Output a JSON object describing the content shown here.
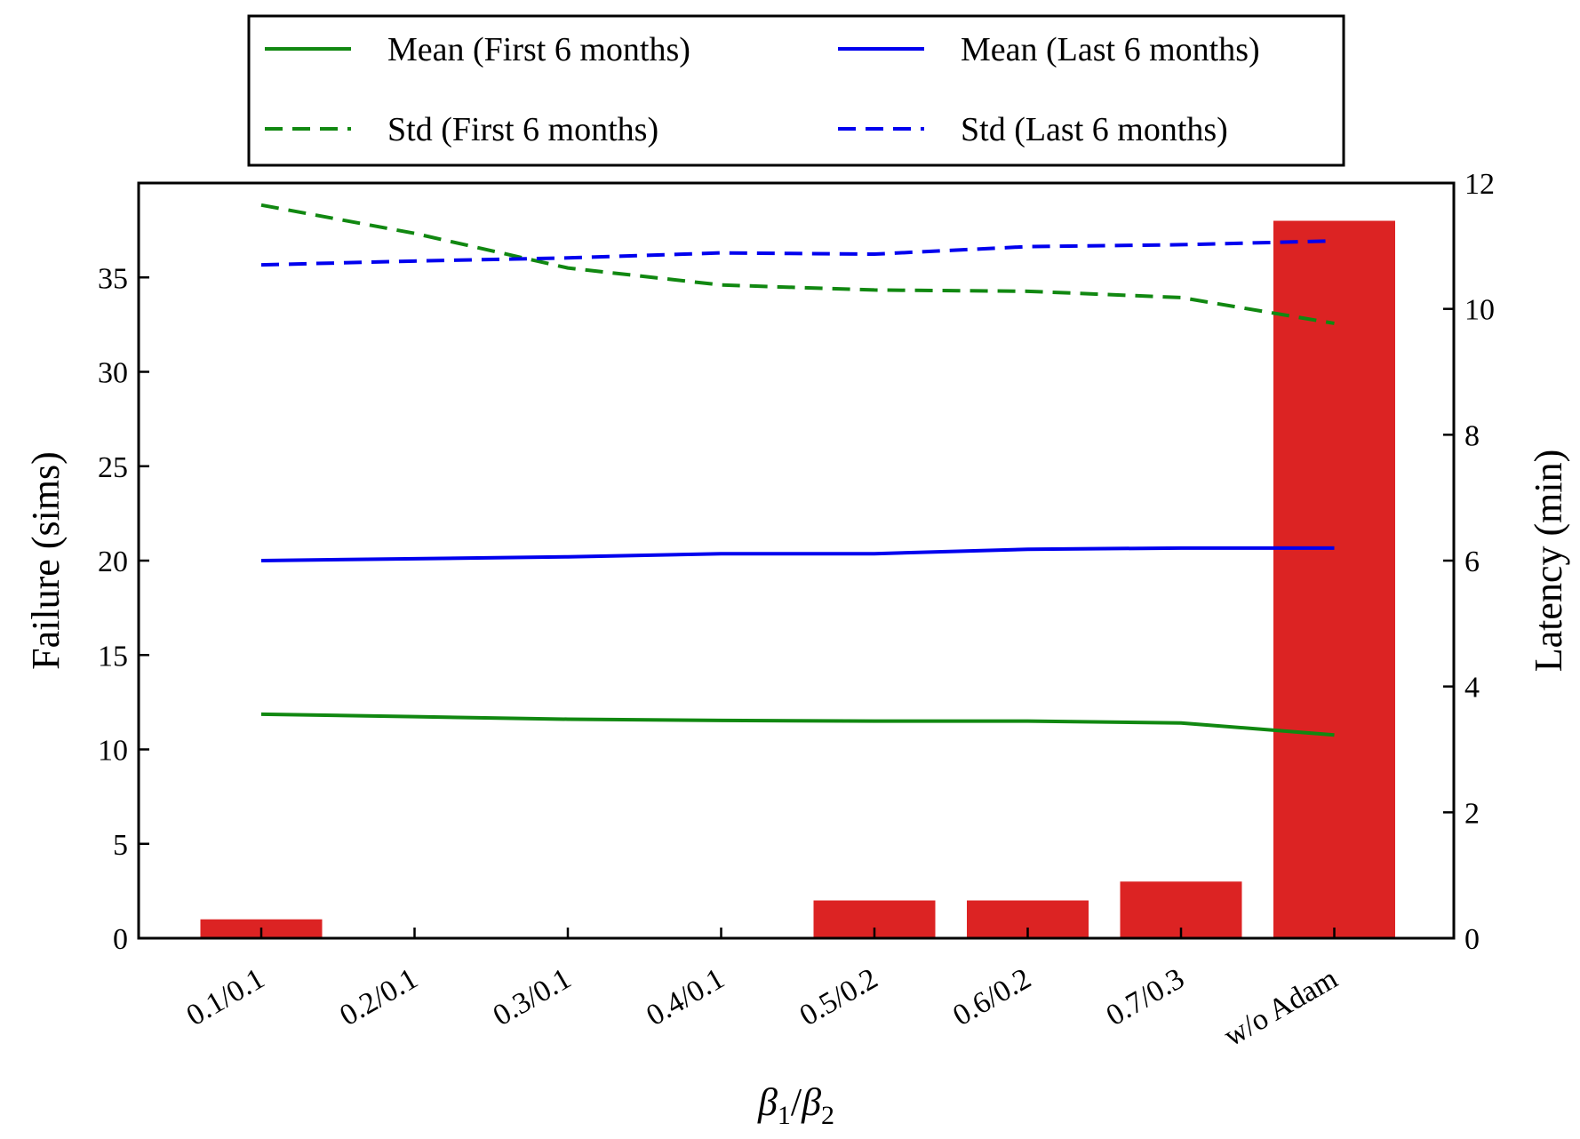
{
  "chart_data": {
    "type": "bar+line",
    "xlabel": "β1/β2",
    "xlabel_parts": {
      "sym1": "β",
      "sub1": "1",
      "sep": "/",
      "sym2": "β",
      "sub2": "2"
    },
    "categories": [
      "0.1/0.1",
      "0.2/0.1",
      "0.3/0.1",
      "0.4/0.1",
      "0.5/0.2",
      "0.6/0.2",
      "0.7/0.3",
      "w/o Adam"
    ],
    "left_axis": {
      "label": "Failure (sims)",
      "ylim": [
        0,
        40
      ],
      "ticks": [
        0,
        5,
        10,
        15,
        20,
        25,
        30,
        35
      ]
    },
    "right_axis": {
      "label": "Latency (min)",
      "ylim": [
        0,
        12
      ],
      "ticks": [
        0,
        2,
        4,
        6,
        8,
        10,
        12
      ]
    },
    "bars": {
      "name": "Failure",
      "axis": "left",
      "color": "#dc2323",
      "values": [
        1,
        0,
        0,
        0,
        2,
        2,
        3,
        38
      ]
    },
    "series": [
      {
        "name": "Mean (First 6 months)",
        "axis": "right",
        "color": "#118811",
        "style": "solid",
        "values": [
          3.56,
          3.52,
          3.48,
          3.46,
          3.45,
          3.45,
          3.42,
          3.23
        ]
      },
      {
        "name": "Mean (Last 6 months)",
        "axis": "right",
        "color": "#0000ee",
        "style": "solid",
        "values": [
          6.0,
          6.03,
          6.06,
          6.11,
          6.11,
          6.18,
          6.2,
          6.2
        ]
      },
      {
        "name": "Std (First 6 months)",
        "axis": "right",
        "color": "#118811",
        "style": "dashed",
        "values": [
          11.65,
          11.2,
          10.65,
          10.38,
          10.3,
          10.28,
          10.18,
          9.77
        ]
      },
      {
        "name": "Std (Last 6 months)",
        "axis": "right",
        "color": "#0000ee",
        "style": "dashed",
        "values": [
          10.7,
          10.76,
          10.81,
          10.89,
          10.87,
          10.99,
          11.02,
          11.08
        ]
      }
    ],
    "legend": {
      "placement": "top",
      "entries": [
        "Mean (First 6 months)",
        "Mean (Last 6 months)",
        "Std (First 6 months)",
        "Std (Last 6 months)"
      ]
    }
  }
}
